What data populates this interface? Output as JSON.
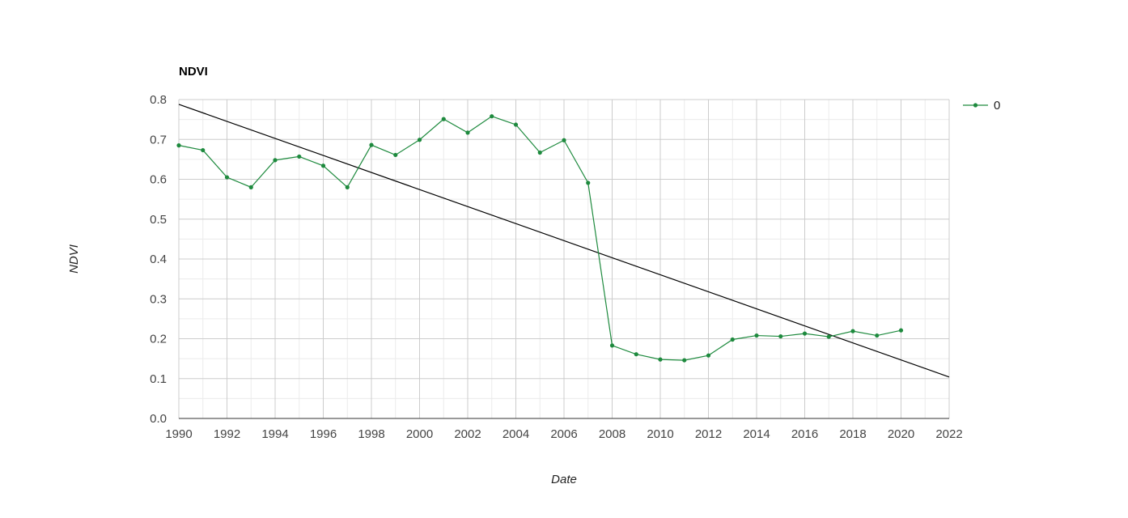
{
  "chart_data": {
    "type": "line",
    "title": "NDVI",
    "xlabel": "Date",
    "ylabel": "NDVI",
    "xlim": [
      1990,
      2022
    ],
    "ylim": [
      0,
      0.8
    ],
    "x_ticks": [
      "1990",
      "1992",
      "1994",
      "1996",
      "1998",
      "2000",
      "2002",
      "2004",
      "2006",
      "2008",
      "2010",
      "2012",
      "2014",
      "2016",
      "2018",
      "2020",
      "2022"
    ],
    "y_ticks": [
      "0.0",
      "0.1",
      "0.2",
      "0.3",
      "0.4",
      "0.5",
      "0.6",
      "0.7",
      "0.8"
    ],
    "grid": true,
    "legend_position": "top-right",
    "series": [
      {
        "name": "0",
        "color": "#1e8a3e",
        "marker": "circle",
        "x": [
          1990,
          1991,
          1992,
          1993,
          1994,
          1995,
          1996,
          1997,
          1998,
          1999,
          2000,
          2001,
          2002,
          2003,
          2004,
          2005,
          2006,
          2007,
          2008,
          2009,
          2010,
          2011,
          2012,
          2013,
          2014,
          2015,
          2016,
          2017,
          2018,
          2019,
          2020
        ],
        "y": [
          0.685,
          0.673,
          0.605,
          0.58,
          0.648,
          0.657,
          0.634,
          0.58,
          0.686,
          0.661,
          0.699,
          0.751,
          0.717,
          0.758,
          0.737,
          0.667,
          0.698,
          0.591,
          0.183,
          0.161,
          0.148,
          0.146,
          0.158,
          0.198,
          0.208,
          0.206,
          0.213,
          0.205,
          0.219,
          0.208,
          0.221
        ]
      }
    ],
    "trendline": {
      "color": "#000000",
      "x": [
        1990,
        2022
      ],
      "y": [
        0.788,
        0.104
      ]
    }
  }
}
